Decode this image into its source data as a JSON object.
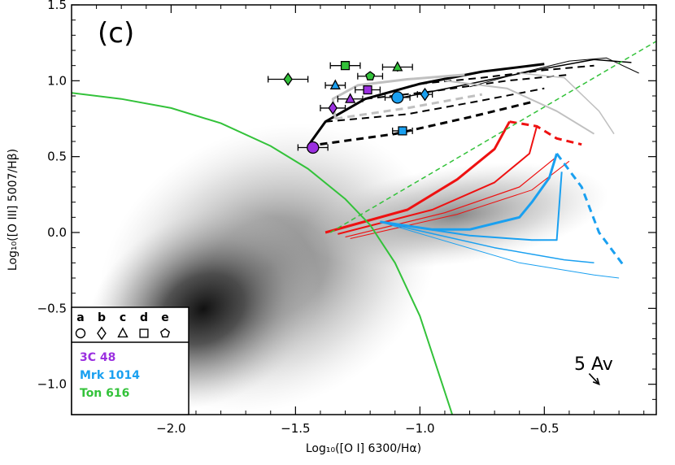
{
  "chart_data": {
    "type": "scatter",
    "panel_label": "(c)",
    "xlabel": "Log₁₀([O I] 6300/Hα)",
    "ylabel": "Log₁₀([O III] 5007/Hβ)",
    "xlim": [
      -2.4,
      -0.05
    ],
    "ylim": [
      -1.2,
      1.5
    ],
    "xticks": [
      -2.0,
      -1.5,
      -1.0,
      -0.5
    ],
    "xtick_labels": [
      "−2.0",
      "−1.5",
      "−1.0",
      "−0.5"
    ],
    "yticks": [
      -1.0,
      -0.5,
      0.0,
      0.5,
      1.0,
      1.5
    ],
    "ytick_labels": [
      "−1.0",
      "−0.5",
      "0.0",
      "0.5",
      "1.0",
      "1.5"
    ],
    "colors": {
      "3C 48": "#9b30e0",
      "Mrk 1014": "#1aa0f0",
      "Ton 616": "#33c23a",
      "demarcation": "#33c23a",
      "red_grid": "#ee1111",
      "blue_grid": "#1aa0f0",
      "black_grid": "#000000",
      "gray_grid": "#c0c0c0"
    },
    "legend": {
      "marker_letters": [
        "a",
        "b",
        "c",
        "d",
        "e"
      ],
      "marker_shapes": [
        "circle",
        "diamond",
        "triangle",
        "square",
        "pentagon"
      ],
      "objects": [
        "3C 48",
        "Mrk 1014",
        "Ton 616"
      ]
    },
    "reddening_label": "5 Av",
    "reddening_vector": {
      "from": [
        -0.32,
        -0.93
      ],
      "to": [
        -0.28,
        -1.0
      ]
    },
    "density_cloud": {
      "center": [
        -1.45,
        -0.5
      ],
      "description_ellipse": true
    },
    "demarcation_curve": {
      "points": [
        [
          -2.4,
          0.92
        ],
        [
          -2.2,
          0.88
        ],
        [
          -2.0,
          0.82
        ],
        [
          -1.8,
          0.72
        ],
        [
          -1.6,
          0.57
        ],
        [
          -1.45,
          0.42
        ],
        [
          -1.3,
          0.22
        ],
        [
          -1.2,
          0.05
        ],
        [
          -1.1,
          -0.2
        ],
        [
          -1.0,
          -0.55
        ],
        [
          -0.92,
          -0.95
        ],
        [
          -0.87,
          -1.2
        ]
      ]
    },
    "dividing_line": {
      "from": [
        -1.36,
        0.0
      ],
      "to": [
        -0.05,
        1.26
      ]
    },
    "series": [
      {
        "name": "3C 48",
        "points": [
          {
            "marker": "a",
            "x": -1.43,
            "y": 0.56,
            "xerr": 0.06,
            "yerr": 0.03
          },
          {
            "marker": "b",
            "x": -1.35,
            "y": 0.82,
            "xerr": 0.05,
            "yerr": 0.02
          },
          {
            "marker": "c",
            "x": -1.28,
            "y": 0.88,
            "xerr": 0.05,
            "yerr": 0.02
          },
          {
            "marker": "d",
            "x": -1.21,
            "y": 0.94,
            "xerr": 0.05,
            "yerr": 0.02
          }
        ]
      },
      {
        "name": "Mrk 1014",
        "points": [
          {
            "marker": "a",
            "x": -1.09,
            "y": 0.89,
            "xerr": 0.05,
            "yerr": 0.02
          },
          {
            "marker": "b",
            "x": -0.98,
            "y": 0.91,
            "xerr": 0.03,
            "yerr": 0.02
          },
          {
            "marker": "c",
            "x": -1.34,
            "y": 0.97,
            "xerr": 0.04,
            "yerr": 0.02
          },
          {
            "marker": "d",
            "x": -1.07,
            "y": 0.67,
            "xerr": 0.04,
            "yerr": 0.03
          }
        ]
      },
      {
        "name": "Ton 616",
        "points": [
          {
            "marker": "b",
            "x": -1.53,
            "y": 1.01,
            "xerr": 0.08,
            "yerr": 0.02
          },
          {
            "marker": "c",
            "x": -1.09,
            "y": 1.09,
            "xerr": 0.06,
            "yerr": 0.03
          },
          {
            "marker": "d",
            "x": -1.3,
            "y": 1.1,
            "xerr": 0.06,
            "yerr": 0.02
          },
          {
            "marker": "e",
            "x": -1.2,
            "y": 1.03,
            "xerr": 0.05,
            "yerr": 0.02
          }
        ]
      }
    ],
    "model_grids": [
      {
        "color": "#000000",
        "lines": [
          {
            "style": "solid",
            "w": 3,
            "points": [
              [
                -1.45,
                0.57
              ],
              [
                -1.38,
                0.73
              ],
              [
                -1.22,
                0.88
              ],
              [
                -1.0,
                0.98
              ],
              [
                -0.75,
                1.06
              ],
              [
                -0.5,
                1.11
              ]
            ]
          },
          {
            "style": "dashed",
            "w": 3,
            "points": [
              [
                -1.45,
                0.57
              ],
              [
                -1.1,
                0.65
              ],
              [
                -0.8,
                0.76
              ],
              [
                -0.55,
                0.86
              ]
            ]
          },
          {
            "style": "dashed",
            "w": 2,
            "points": [
              [
                -1.38,
                0.73
              ],
              [
                -1.05,
                0.78
              ],
              [
                -0.75,
                0.87
              ],
              [
                -0.5,
                0.95
              ]
            ]
          },
          {
            "style": "dashed",
            "w": 2,
            "points": [
              [
                -1.22,
                0.88
              ],
              [
                -0.95,
                0.93
              ],
              [
                -0.65,
                1.0
              ],
              [
                -0.4,
                1.04
              ]
            ]
          },
          {
            "style": "dashed",
            "w": 2,
            "points": [
              [
                -1.0,
                0.98
              ],
              [
                -0.75,
                1.02
              ],
              [
                -0.5,
                1.07
              ],
              [
                -0.3,
                1.1
              ]
            ]
          },
          {
            "style": "solid",
            "w": 1.5,
            "points": [
              [
                -1.1,
                0.88
              ],
              [
                -0.8,
                0.98
              ],
              [
                -0.5,
                1.08
              ],
              [
                -0.3,
                1.14
              ],
              [
                -0.15,
                1.12
              ]
            ]
          },
          {
            "style": "solid",
            "w": 1,
            "points": [
              [
                -0.8,
                0.96
              ],
              [
                -0.6,
                1.05
              ],
              [
                -0.4,
                1.13
              ],
              [
                -0.25,
                1.15
              ],
              [
                -0.12,
                1.05
              ]
            ]
          }
        ]
      },
      {
        "color": "#c0c0c0",
        "lines": [
          {
            "style": "solid",
            "w": 3,
            "points": [
              [
                -1.34,
                0.75
              ],
              [
                -1.35,
                0.88
              ],
              [
                -1.25,
                0.97
              ],
              [
                -1.05,
                1.01
              ],
              [
                -0.82,
                1.04
              ]
            ]
          },
          {
            "style": "dashed",
            "w": 3,
            "points": [
              [
                -1.34,
                0.75
              ],
              [
                -1.05,
                0.82
              ],
              [
                -0.75,
                0.91
              ]
            ]
          },
          {
            "style": "solid",
            "w": 2,
            "points": [
              [
                -0.9,
                1.0
              ],
              [
                -0.65,
                0.95
              ],
              [
                -0.45,
                0.8
              ],
              [
                -0.3,
                0.65
              ]
            ]
          },
          {
            "style": "solid",
            "w": 1.5,
            "points": [
              [
                -0.6,
                1.05
              ],
              [
                -0.42,
                1.02
              ],
              [
                -0.28,
                0.8
              ],
              [
                -0.22,
                0.65
              ]
            ]
          }
        ]
      },
      {
        "color": "#ee1111",
        "lines": [
          {
            "style": "solid",
            "w": 3,
            "points": [
              [
                -1.38,
                0.0
              ],
              [
                -1.05,
                0.15
              ],
              [
                -0.85,
                0.35
              ],
              [
                -0.7,
                0.55
              ],
              [
                -0.64,
                0.73
              ]
            ]
          },
          {
            "style": "solid",
            "w": 2,
            "points": [
              [
                -1.33,
                -0.01
              ],
              [
                -0.95,
                0.15
              ],
              [
                -0.7,
                0.33
              ],
              [
                -0.56,
                0.52
              ],
              [
                -0.53,
                0.7
              ]
            ]
          },
          {
            "style": "solid",
            "w": 1.2,
            "points": [
              [
                -1.3,
                -0.03
              ],
              [
                -0.9,
                0.13
              ],
              [
                -0.6,
                0.3
              ],
              [
                -0.45,
                0.5
              ]
            ]
          },
          {
            "style": "solid",
            "w": 1,
            "points": [
              [
                -1.28,
                -0.04
              ],
              [
                -0.85,
                0.12
              ],
              [
                -0.55,
                0.28
              ],
              [
                -0.4,
                0.47
              ]
            ]
          },
          {
            "style": "dashed",
            "w": 3,
            "points": [
              [
                -0.64,
                0.73
              ],
              [
                -0.53,
                0.7
              ],
              [
                -0.45,
                0.62
              ],
              [
                -0.35,
                0.58
              ]
            ]
          }
        ]
      },
      {
        "color": "#1aa0f0",
        "lines": [
          {
            "style": "solid",
            "w": 3,
            "points": [
              [
                -1.16,
                0.07
              ],
              [
                -0.95,
                0.02
              ],
              [
                -0.8,
                0.02
              ],
              [
                -0.6,
                0.1
              ],
              [
                -0.55,
                0.2
              ],
              [
                -0.48,
                0.36
              ],
              [
                -0.45,
                0.52
              ]
            ]
          },
          {
            "style": "solid",
            "w": 2,
            "points": [
              [
                -1.16,
                0.07
              ],
              [
                -0.8,
                -0.02
              ],
              [
                -0.55,
                -0.05
              ],
              [
                -0.45,
                -0.05
              ],
              [
                -0.43,
                0.4
              ]
            ]
          },
          {
            "style": "solid",
            "w": 1.5,
            "points": [
              [
                -1.16,
                0.07
              ],
              [
                -0.7,
                -0.1
              ],
              [
                -0.42,
                -0.18
              ],
              [
                -0.3,
                -0.2
              ]
            ]
          },
          {
            "style": "solid",
            "w": 1,
            "points": [
              [
                -1.16,
                0.07
              ],
              [
                -0.6,
                -0.2
              ],
              [
                -0.3,
                -0.28
              ],
              [
                -0.2,
                -0.3
              ]
            ]
          },
          {
            "style": "dashed",
            "w": 3,
            "points": [
              [
                -0.45,
                0.52
              ],
              [
                -0.35,
                0.3
              ],
              [
                -0.28,
                0.0
              ],
              [
                -0.18,
                -0.22
              ]
            ]
          }
        ]
      }
    ]
  }
}
